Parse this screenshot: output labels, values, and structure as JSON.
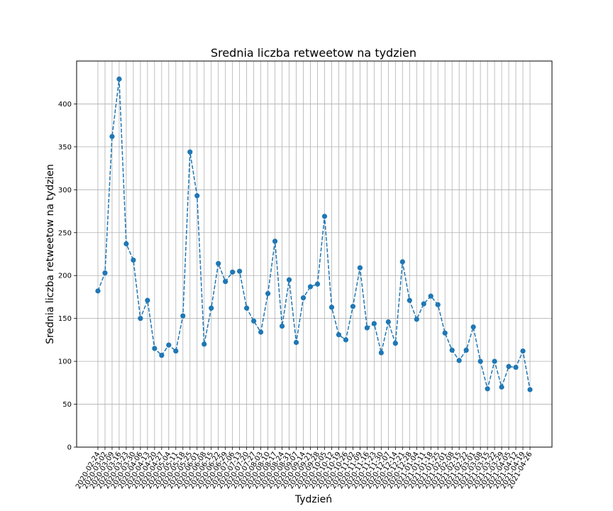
{
  "chart_data": {
    "type": "line",
    "title": "Srednia liczba retweetow na tydzien",
    "xlabel": "Tydzień",
    "ylabel": "Srednia liczba retweetow na tydzien",
    "ylim": [
      0,
      450
    ],
    "yticks": [
      0,
      50,
      100,
      150,
      200,
      250,
      300,
      350,
      400
    ],
    "grid": true,
    "marker": "circle",
    "line_style": "dashed",
    "series_color": "#1f77b4",
    "categories": [
      "2020-02-24",
      "2020-03-02",
      "2020-03-09",
      "2020-03-16",
      "2020-03-23",
      "2020-03-30",
      "2020-04-06",
      "2020-04-13",
      "2020-04-20",
      "2020-04-27",
      "2020-05-04",
      "2020-05-11",
      "2020-05-18",
      "2020-05-25",
      "2020-06-01",
      "2020-06-08",
      "2020-06-15",
      "2020-06-22",
      "2020-06-29",
      "2020-07-06",
      "2020-07-13",
      "2020-07-20",
      "2020-07-27",
      "2020-08-03",
      "2020-08-10",
      "2020-08-17",
      "2020-08-24",
      "2020-08-31",
      "2020-09-07",
      "2020-09-14",
      "2020-09-21",
      "2020-09-28",
      "2020-10-05",
      "2020-10-12",
      "2020-10-19",
      "2020-10-26",
      "2020-11-02",
      "2020-11-09",
      "2020-11-16",
      "2020-11-23",
      "2020-11-30",
      "2020-12-07",
      "2020-12-14",
      "2020-12-21",
      "2020-12-28",
      "2021-01-04",
      "2021-01-11",
      "2021-01-18",
      "2021-01-25",
      "2021-02-01",
      "2021-02-08",
      "2021-02-15",
      "2021-02-22",
      "2021-03-01",
      "2021-03-08",
      "2021-03-15",
      "2021-03-22",
      "2021-03-29",
      "2021-04-05",
      "2021-04-12",
      "2021-04-19",
      "2021-04-26"
    ],
    "values": [
      182,
      203,
      362,
      429,
      237,
      218,
      150,
      171,
      115,
      107,
      119,
      112,
      153,
      344,
      293,
      120,
      162,
      214,
      193,
      204,
      205,
      162,
      147,
      134,
      179,
      240,
      141,
      195,
      122,
      174,
      187,
      190,
      269,
      163,
      131,
      125,
      164,
      209,
      139,
      144,
      110,
      146,
      121,
      216,
      171,
      149,
      167,
      176,
      166,
      133,
      113,
      101,
      113,
      140,
      100,
      68,
      100,
      70,
      94,
      93,
      112,
      67
    ]
  }
}
